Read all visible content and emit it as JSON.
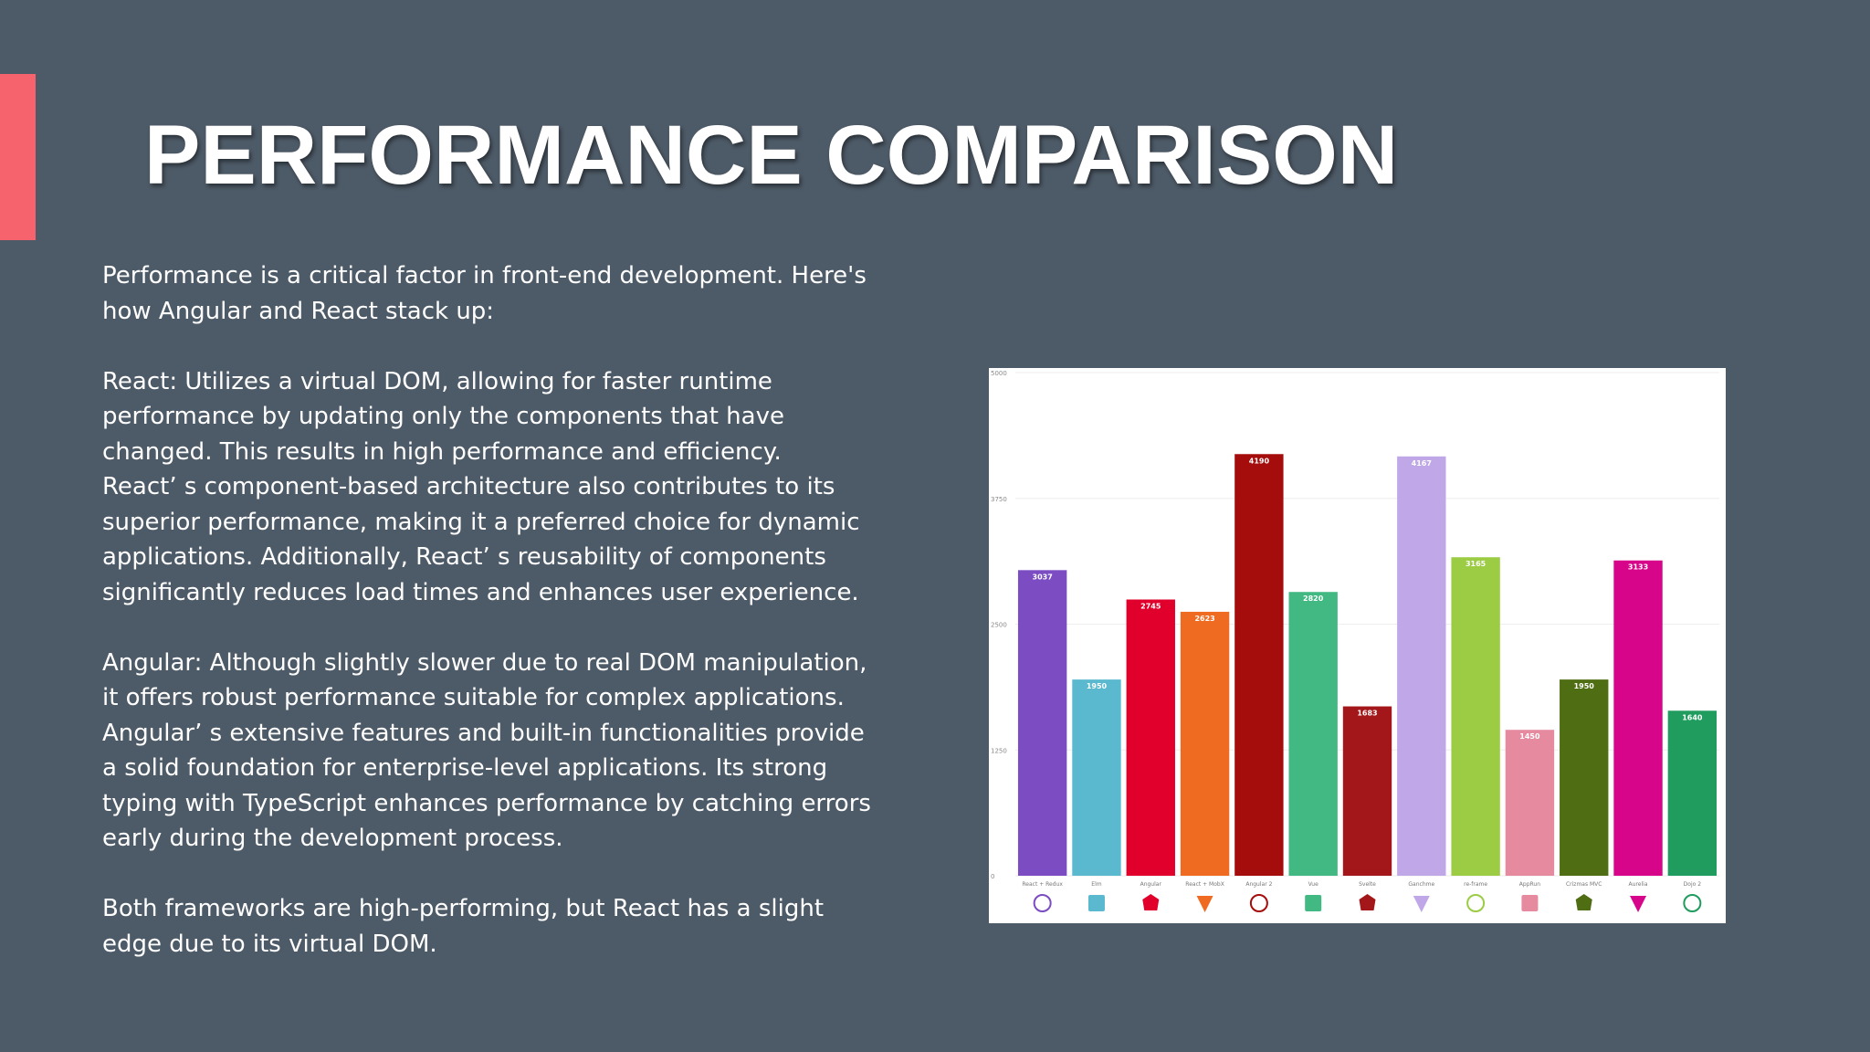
{
  "slide": {
    "title": "PERFORMANCE COMPARISON",
    "paragraphs": [
      "Performance is a critical factor in front-end development. Here's\nhow Angular and React stack up:",
      "React: Utilizes a virtual DOM, allowing for faster runtime\nperformance by updating only the components that have\nchanged. This results in high performance and efficiency.\nReact’ s component-based architecture also contributes to its\nsuperior performance, making it a preferred choice for dynamic\napplications. Additionally, React’ s reusability of components\nsignificantly reduces load times and enhances user experience.",
      "Angular: Although slightly slower due to real DOM manipulation,\nit offers robust performance suitable for complex applications.\nAngular’ s extensive features and built-in functionalities provide\na solid foundation for enterprise-level applications. Its strong\ntyping with TypeScript enhances performance by catching errors\nearly during the development process.",
      "Both frameworks are high-performing, but React has a slight\nedge due to its virtual DOM."
    ],
    "colors": {
      "background": "#4d5a67",
      "accent": "#f7636c",
      "text": "#ffffff"
    }
  },
  "chart_data": {
    "type": "bar",
    "categories": [
      "React + Redux",
      "Elm",
      "Angular",
      "React + MobX",
      "Angular 2",
      "Vue",
      "Svelte",
      "Ganchme",
      "re-frame",
      "AppRun",
      "Crizmas MVC",
      "Aurelia",
      "Dojo 2"
    ],
    "values": [
      3037,
      1950,
      2745,
      2623,
      4190,
      2820,
      1683,
      4167,
      3165,
      1450,
      1950,
      3133,
      1640
    ],
    "value_labels": [
      "3037",
      "1950",
      "2745",
      "2623",
      "4190",
      "2820",
      "1683",
      "4167",
      "3165",
      "1450",
      "1950",
      "3133",
      "1640"
    ],
    "colors": [
      "#7b4cc2",
      "#5ab8cf",
      "#e0002b",
      "#ef6b22",
      "#a50d0d",
      "#42b883",
      "#a3161a",
      "#c0a8e8",
      "#9bcc44",
      "#e68aa0",
      "#4f6d12",
      "#d7058a",
      "#209c5e"
    ],
    "icons": [
      "react-redux-icon",
      "elm-icon",
      "angular-icon",
      "mobx-icon",
      "angular2-icon",
      "vue-icon",
      "svelte-icon",
      "ganchme-icon",
      "reframe-icon",
      "apprun-icon",
      "crizmas-icon",
      "aurelia-icon",
      "dojo-icon"
    ],
    "yticks": [
      "0",
      "1250",
      "2500",
      "3750",
      "5000"
    ],
    "ylim": [
      0,
      5000
    ],
    "grid": true,
    "title": "",
    "xlabel": "",
    "ylabel": ""
  }
}
